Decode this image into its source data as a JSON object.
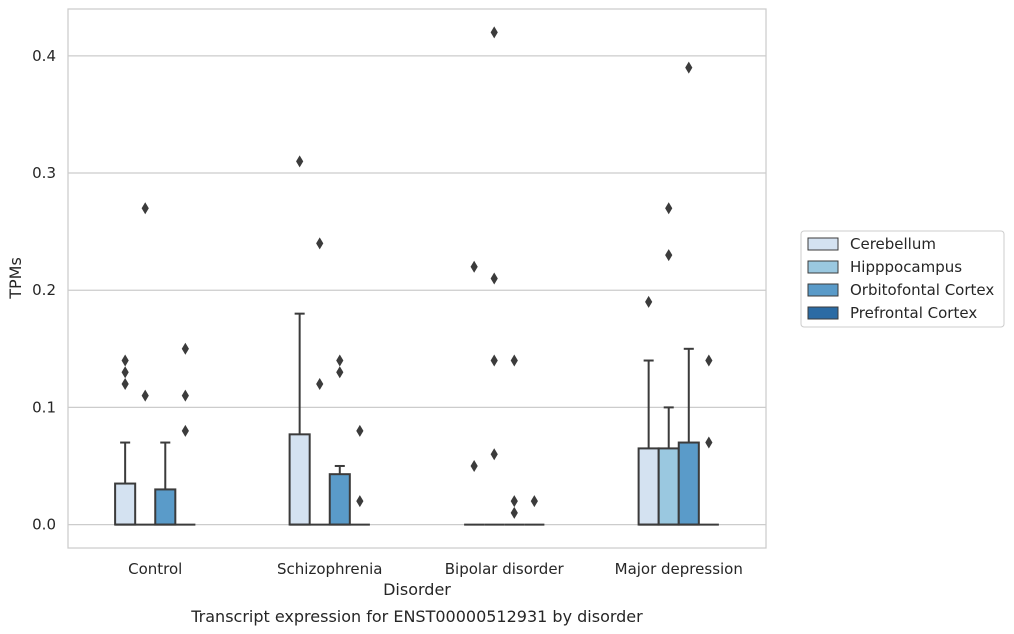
{
  "chart_data": {
    "type": "box",
    "title": "",
    "caption": "Transcript expression for ENST00000512931 by disorder",
    "xlabel": "Disorder",
    "ylabel": "TPMs",
    "ylim": [
      -0.02,
      0.44
    ],
    "yticks": [
      0.0,
      0.1,
      0.2,
      0.3,
      0.4
    ],
    "ytick_labels": [
      "0.0",
      "0.1",
      "0.2",
      "0.3",
      "0.4"
    ],
    "grid": "horizontal",
    "legend_position": "right",
    "categories": [
      "Control",
      "Schizophrenia",
      "Bipolar disorder",
      "Major depression"
    ],
    "series": [
      {
        "name": "Cerebellum",
        "color": "#d4e2f1",
        "boxes": [
          {
            "q1": 0,
            "median": 0,
            "q3": 0.035,
            "whisker_low": 0,
            "whisker_high": 0.07,
            "outliers": [
              0.12,
              0.13,
              0.14
            ]
          },
          {
            "q1": 0,
            "median": 0,
            "q3": 0.077,
            "whisker_low": 0,
            "whisker_high": 0.18,
            "outliers": [
              0.31
            ]
          },
          {
            "q1": 0,
            "median": 0,
            "q3": 0,
            "whisker_low": 0,
            "whisker_high": 0,
            "outliers": [
              0.05,
              0.22
            ]
          },
          {
            "q1": 0,
            "median": 0,
            "q3": 0.065,
            "whisker_low": 0,
            "whisker_high": 0.14,
            "outliers": [
              0.19
            ]
          }
        ]
      },
      {
        "name": "Hipppocampus",
        "color": "#9ac8e0",
        "boxes": [
          {
            "q1": 0,
            "median": 0,
            "q3": 0,
            "whisker_low": 0,
            "whisker_high": 0,
            "outliers": [
              0.11,
              0.27
            ]
          },
          {
            "q1": 0,
            "median": 0,
            "q3": 0,
            "whisker_low": 0,
            "whisker_high": 0,
            "outliers": [
              0.12,
              0.24
            ]
          },
          {
            "q1": 0,
            "median": 0,
            "q3": 0,
            "whisker_low": 0,
            "whisker_high": 0,
            "outliers": [
              0.06,
              0.14,
              0.21,
              0.42
            ]
          },
          {
            "q1": 0,
            "median": 0,
            "q3": 0.065,
            "whisker_low": 0,
            "whisker_high": 0.1,
            "outliers": [
              0.23,
              0.27
            ]
          }
        ]
      },
      {
        "name": "Orbitofontal Cortex",
        "color": "#5a9bc9",
        "boxes": [
          {
            "q1": 0,
            "median": 0,
            "q3": 0.03,
            "whisker_low": 0,
            "whisker_high": 0.07,
            "outliers": []
          },
          {
            "q1": 0,
            "median": 0,
            "q3": 0.043,
            "whisker_low": 0,
            "whisker_high": 0.05,
            "outliers": [
              0.13,
              0.14
            ]
          },
          {
            "q1": 0,
            "median": 0,
            "q3": 0,
            "whisker_low": 0,
            "whisker_high": 0,
            "outliers": [
              0.01,
              0.02,
              0.14
            ]
          },
          {
            "q1": 0,
            "median": 0,
            "q3": 0.07,
            "whisker_low": 0,
            "whisker_high": 0.15,
            "outliers": [
              0.39
            ]
          }
        ]
      },
      {
        "name": "Prefrontal Cortex",
        "color": "#2b6ba4",
        "boxes": [
          {
            "q1": 0,
            "median": 0,
            "q3": 0,
            "whisker_low": 0,
            "whisker_high": 0,
            "outliers": [
              0.08,
              0.11,
              0.15
            ]
          },
          {
            "q1": 0,
            "median": 0,
            "q3": 0,
            "whisker_low": 0,
            "whisker_high": 0,
            "outliers": [
              0.02,
              0.08
            ]
          },
          {
            "q1": 0,
            "median": 0,
            "q3": 0,
            "whisker_low": 0,
            "whisker_high": 0,
            "outliers": [
              0.02
            ]
          },
          {
            "q1": 0,
            "median": 0,
            "q3": 0,
            "whisker_low": 0,
            "whisker_high": 0,
            "outliers": [
              0.07,
              0.14
            ]
          }
        ]
      }
    ]
  }
}
